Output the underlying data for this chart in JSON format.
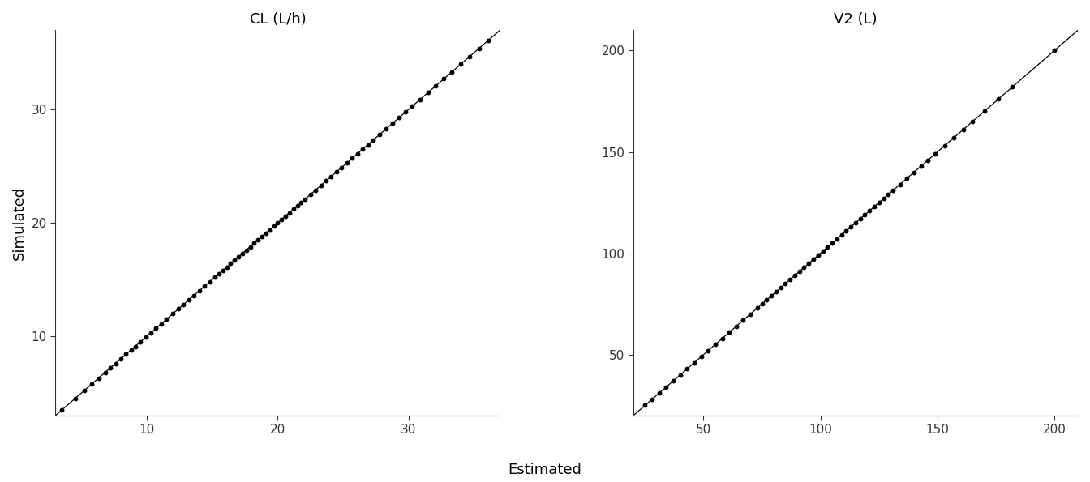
{
  "panel1": {
    "title": "CL (L/h)",
    "xlim": [
      3,
      37
    ],
    "ylim": [
      3,
      37
    ],
    "xticks": [
      10,
      20,
      30
    ],
    "yticks": [
      10,
      20,
      30
    ],
    "x_points": [
      3.5,
      4.5,
      5.2,
      5.8,
      6.3,
      6.8,
      7.2,
      7.6,
      8.0,
      8.4,
      8.8,
      9.1,
      9.5,
      9.9,
      10.3,
      10.7,
      11.1,
      11.5,
      12.0,
      12.4,
      12.8,
      13.2,
      13.6,
      14.0,
      14.4,
      14.8,
      15.2,
      15.5,
      15.8,
      16.1,
      16.4,
      16.7,
      17.0,
      17.3,
      17.6,
      17.9,
      18.2,
      18.5,
      18.8,
      19.1,
      19.4,
      19.7,
      20.0,
      20.3,
      20.6,
      20.9,
      21.2,
      21.5,
      21.8,
      22.1,
      22.5,
      22.9,
      23.3,
      23.7,
      24.1,
      24.5,
      24.9,
      25.3,
      25.7,
      26.1,
      26.5,
      26.9,
      27.3,
      27.8,
      28.3,
      28.8,
      29.3,
      29.8,
      30.3,
      30.9,
      31.5,
      32.1,
      32.7,
      33.3,
      34.0,
      34.7,
      35.4,
      36.1
    ],
    "noise_scale": 0.0
  },
  "panel2": {
    "title": "V2 (L)",
    "xlim": [
      20,
      210
    ],
    "ylim": [
      20,
      210
    ],
    "xticks": [
      50,
      100,
      150,
      200
    ],
    "yticks": [
      50,
      100,
      150,
      200
    ],
    "x_points": [
      25,
      28,
      31,
      34,
      37,
      40,
      43,
      46,
      49,
      52,
      55,
      58,
      61,
      64,
      67,
      70,
      73,
      75,
      77,
      79,
      81,
      83,
      85,
      87,
      89,
      91,
      93,
      95,
      97,
      99,
      101,
      103,
      105,
      107,
      109,
      111,
      113,
      115,
      117,
      119,
      121,
      123,
      125,
      127,
      129,
      131,
      134,
      137,
      140,
      143,
      146,
      149,
      153,
      157,
      161,
      165,
      170,
      176,
      182,
      200
    ],
    "noise_scale": 0.0
  },
  "xlabel": "Estimated",
  "ylabel": "Simulated",
  "background_color": "#ffffff",
  "line_color": "#000000",
  "point_color": "#000000",
  "point_size": 18,
  "title_fontsize": 13,
  "label_fontsize": 13,
  "tick_fontsize": 11,
  "fig_width": 13.44,
  "fig_height": 5.95
}
